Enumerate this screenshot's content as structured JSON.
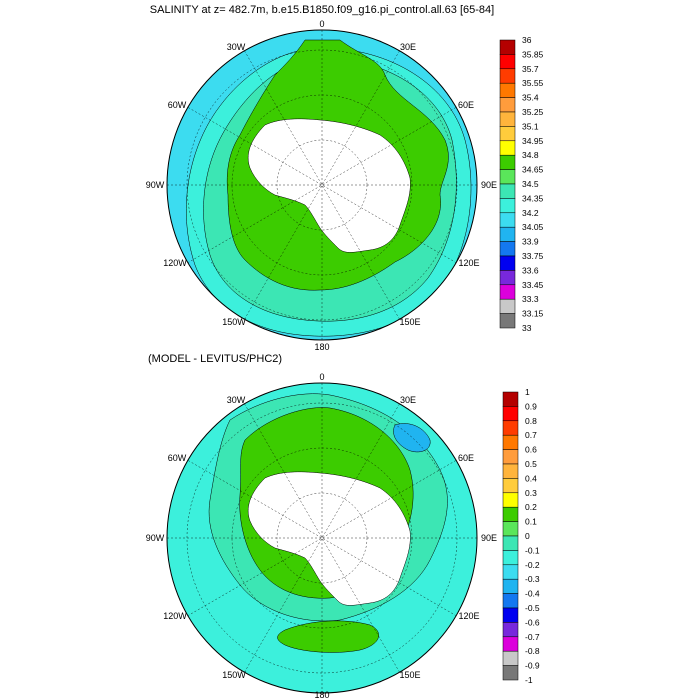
{
  "panels": [
    {
      "title": "SALINITY at z= 482.7m, b.e15.B1850.f09_g16.pi_control.all.63 [65-84]",
      "longitude_labels": [
        "0",
        "30E",
        "60E",
        "90E",
        "120E",
        "150E",
        "180",
        "150W",
        "120W",
        "90W",
        "60W",
        "30W"
      ],
      "colorbar": {
        "labels": [
          "36",
          "35.85",
          "35.7",
          "35.55",
          "35.4",
          "35.25",
          "35.1",
          "34.95",
          "34.8",
          "34.65",
          "34.5",
          "34.35",
          "34.2",
          "34.05",
          "33.9",
          "33.75",
          "33.6",
          "33.45",
          "33.3",
          "33.15",
          "33"
        ],
        "colors": [
          "#b40000",
          "#ff0000",
          "#ff3c00",
          "#ff7800",
          "#ff9c3c",
          "#ffb43c",
          "#ffcc3c",
          "#ffff00",
          "#3ccc00",
          "#5ae65a",
          "#3ce6b4",
          "#3cf0dc",
          "#3cdcf0",
          "#20b4f0",
          "#1478f0",
          "#0000f0",
          "#7828dc",
          "#dc00dc",
          "#c8c8c8",
          "#787878"
        ],
        "dominant_near_ice": "#3ccc00"
      }
    },
    {
      "title": "(MODEL - LEVITUS/PHC2)",
      "longitude_labels": [
        "0",
        "30E",
        "60E",
        "90E",
        "120E",
        "150E",
        "180",
        "150W",
        "120W",
        "90W",
        "60W",
        "30W"
      ],
      "colorbar": {
        "labels": [
          "1",
          "0.9",
          "0.8",
          "0.7",
          "0.6",
          "0.5",
          "0.4",
          "0.3",
          "0.2",
          "0.1",
          "0",
          "-0.1",
          "-0.2",
          "-0.3",
          "-0.4",
          "-0.5",
          "-0.6",
          "-0.7",
          "-0.8",
          "-0.9",
          "-1"
        ],
        "colors": [
          "#b40000",
          "#ff0000",
          "#ff3c00",
          "#ff7800",
          "#ff9c3c",
          "#ffb43c",
          "#ffcc3c",
          "#ffff00",
          "#3ccc00",
          "#5ae65a",
          "#3ce6b4",
          "#3cf0dc",
          "#3cdcf0",
          "#20b4f0",
          "#1478f0",
          "#0000f0",
          "#7828dc",
          "#dc00dc",
          "#c8c8c8",
          "#787878"
        ],
        "dominant_near_ice": "#3ccc00"
      }
    }
  ]
}
